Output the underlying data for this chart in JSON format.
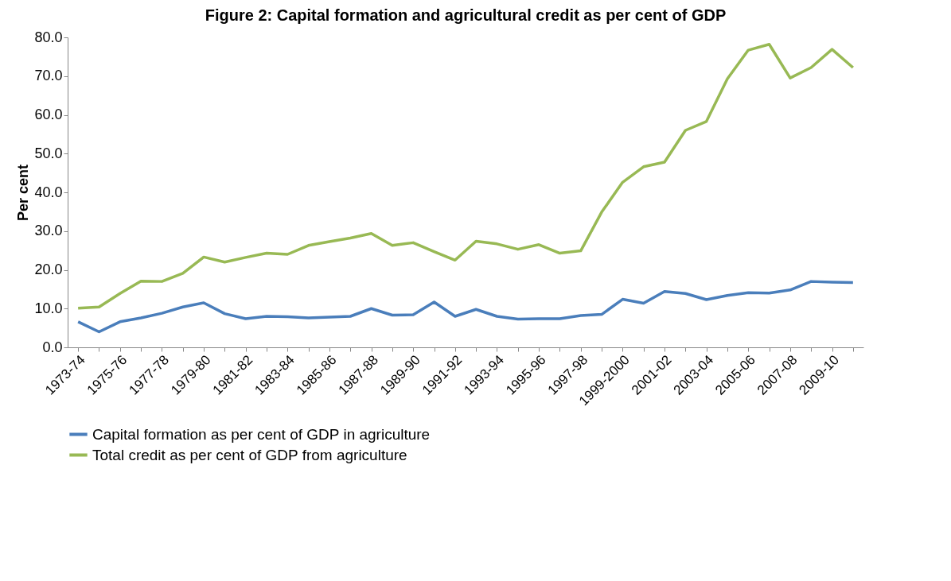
{
  "chart_data": {
    "type": "line",
    "title": "Figure 2: Capital formation and agricultural credit  as per cent of GDP",
    "ylabel": "Per cent",
    "categories": [
      "1973-74",
      null,
      "1975-76",
      null,
      "1977-78",
      null,
      "1979-80",
      null,
      "1981-82",
      null,
      "1983-84",
      null,
      "1985-86",
      null,
      "1987-88",
      null,
      "1989-90",
      null,
      "1991-92",
      null,
      "1993-94",
      null,
      "1995-96",
      null,
      "1997-98",
      null,
      "1999-2000",
      null,
      "2001-02",
      null,
      "2003-04",
      null,
      "2005-06",
      null,
      "2007-08",
      null,
      "2009-10",
      null
    ],
    "series": [
      {
        "name": "Capital formation as per cent of GDP in agriculture",
        "color": "#4a7ebb",
        "values": [
          6.6,
          4.0,
          6.6,
          7.6,
          8.8,
          10.4,
          11.5,
          8.7,
          7.4,
          8.0,
          7.9,
          7.6,
          7.8,
          8.0,
          10.0,
          8.3,
          8.4,
          11.7,
          8.0,
          9.8,
          8.0,
          7.3,
          7.4,
          7.4,
          8.2,
          8.5,
          12.4,
          11.4,
          14.4,
          13.9,
          12.3,
          13.4,
          14.1,
          14.0,
          14.8,
          17.0,
          16.8,
          16.7
        ]
      },
      {
        "name": "Total credit as per cent of GDP from agriculture",
        "color": "#98b954",
        "values": [
          10.1,
          10.4,
          13.9,
          17.1,
          17.0,
          19.1,
          23.3,
          22.0,
          23.2,
          24.3,
          24.0,
          26.3,
          27.3,
          28.2,
          29.4,
          26.3,
          27.0,
          24.7,
          22.5,
          27.4,
          26.7,
          25.3,
          26.5,
          24.3,
          24.9,
          34.9,
          42.6,
          46.6,
          47.8,
          56.0,
          58.3,
          69.3,
          76.7,
          78.2,
          69.5,
          72.2,
          76.9,
          72.2
        ]
      }
    ],
    "ylim": [
      0,
      80
    ],
    "yticks": [
      {
        "value": 0,
        "label": "0.0"
      },
      {
        "value": 10,
        "label": "10.0"
      },
      {
        "value": 20,
        "label": "20.0"
      },
      {
        "value": 30,
        "label": "30.0"
      },
      {
        "value": 40,
        "label": "40.0"
      },
      {
        "value": 50,
        "label": "50.0"
      },
      {
        "value": 60,
        "label": "60.0"
      },
      {
        "value": 70,
        "label": "70.0"
      },
      {
        "value": 80,
        "label": "80.0"
      }
    ],
    "grid": false,
    "legend": "bottom",
    "marker": "none",
    "line_style": "solid"
  }
}
